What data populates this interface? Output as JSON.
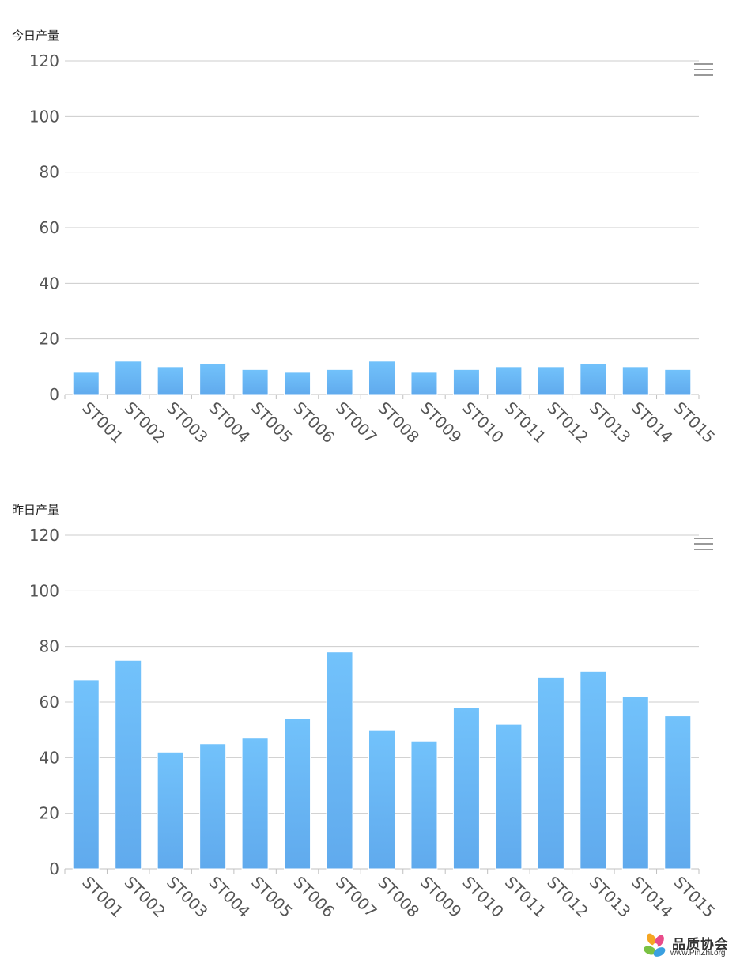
{
  "chart_data": [
    {
      "type": "bar",
      "title": "今日产量",
      "categories": [
        "ST001",
        "ST002",
        "ST003",
        "ST004",
        "ST005",
        "ST006",
        "ST007",
        "ST008",
        "ST009",
        "ST010",
        "ST011",
        "ST012",
        "ST013",
        "ST014",
        "ST015"
      ],
      "values": [
        8,
        12,
        10,
        11,
        9,
        8,
        9,
        12,
        8,
        9,
        10,
        10,
        11,
        10,
        9
      ],
      "yticks": [
        "0",
        "20",
        "40",
        "60",
        "80",
        "100",
        "120"
      ],
      "ylim": [
        0,
        120
      ],
      "grid": true,
      "bar_color": "#6cbaf6"
    },
    {
      "type": "bar",
      "title": "昨日产量",
      "categories": [
        "ST001",
        "ST002",
        "ST003",
        "ST004",
        "ST005",
        "ST006",
        "ST007",
        "ST008",
        "ST009",
        "ST010",
        "ST011",
        "ST012",
        "ST013",
        "ST014",
        "ST015"
      ],
      "values": [
        68,
        75,
        42,
        45,
        47,
        54,
        78,
        50,
        46,
        58,
        52,
        69,
        71,
        62,
        55
      ],
      "yticks": [
        "0",
        "20",
        "40",
        "60",
        "80",
        "100",
        "120"
      ],
      "ylim": [
        0,
        120
      ],
      "grid": true,
      "bar_color": "#6cbaf6"
    }
  ],
  "watermark": {
    "name": "品质协会",
    "url": "www.PinZhi.org"
  },
  "colors": {
    "grid": "#cccccc",
    "axis": "#c0c0c0",
    "bar_top": "#72c2fb",
    "bar_bottom": "#60aaed"
  },
  "icons": [
    "menu-icon",
    "logo-icon"
  ]
}
